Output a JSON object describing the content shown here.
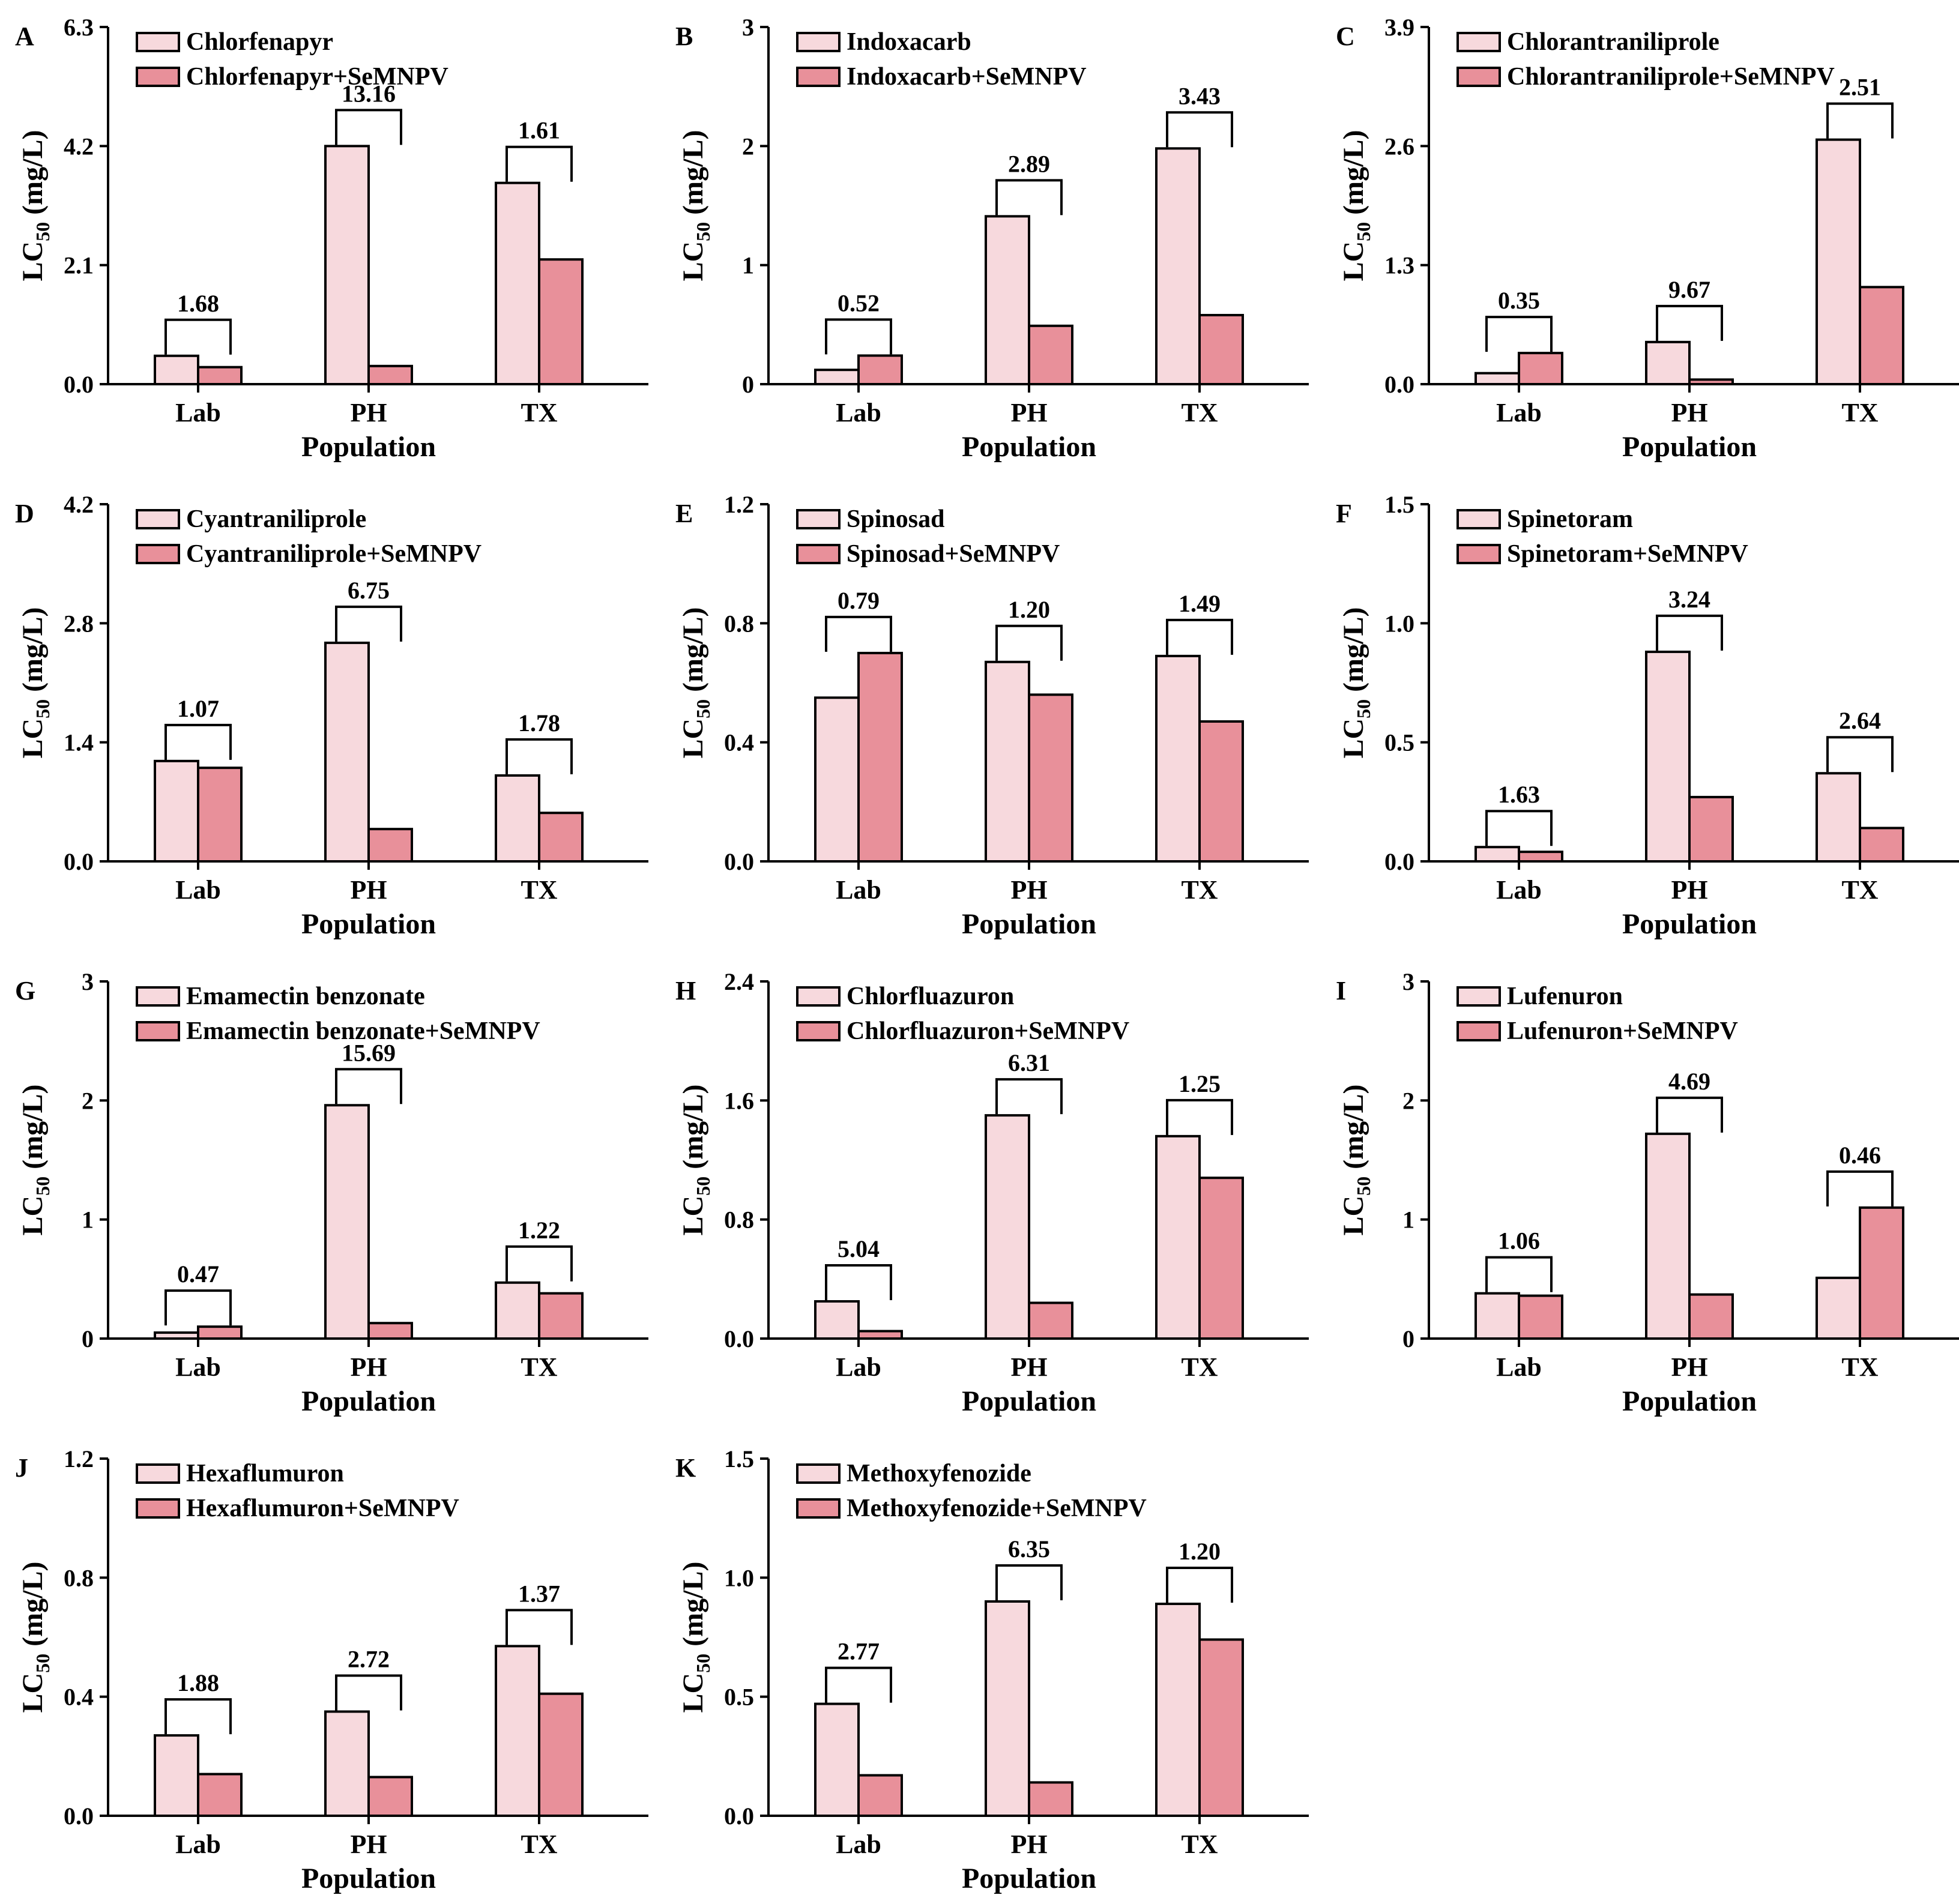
{
  "figure": {
    "colors": {
      "pure": "#f7d9dd",
      "mix": "#e8909a",
      "stroke": "#000000"
    }
  },
  "chart_data": [
    {
      "panel": "A",
      "type": "bar",
      "categories": [
        "Lab",
        "PH",
        "TX"
      ],
      "ylim": [
        0,
        6.3
      ],
      "yticks": [
        "0.0",
        "2.1",
        "4.2",
        "6.3"
      ],
      "xlabel": "Population",
      "ylabel_main": "LC",
      "ylabel_sub": "50",
      "ylabel_unit": " (mg/L)",
      "series": [
        {
          "name": "Chlorfenapyr",
          "values": [
            0.5,
            4.2,
            3.55
          ]
        },
        {
          "name": "Chlorfenapyr+SeMNPV",
          "values": [
            0.3,
            0.32,
            2.2
          ]
        }
      ],
      "ratios": [
        "1.68",
        "13.16",
        "1.61"
      ]
    },
    {
      "panel": "B",
      "type": "bar",
      "categories": [
        "Lab",
        "PH",
        "TX"
      ],
      "ylim": [
        0,
        3
      ],
      "yticks": [
        "0",
        "1",
        "2",
        "3"
      ],
      "xlabel": "Population",
      "ylabel_main": "LC",
      "ylabel_sub": "50",
      "ylabel_unit": " (mg/L)",
      "series": [
        {
          "name": "Indoxacarb",
          "values": [
            0.12,
            1.41,
            1.98
          ]
        },
        {
          "name": "Indoxacarb+SeMNPV",
          "values": [
            0.24,
            0.49,
            0.58
          ]
        }
      ],
      "ratios": [
        "0.52",
        "2.89",
        "3.43"
      ]
    },
    {
      "panel": "C",
      "type": "bar",
      "categories": [
        "Lab",
        "PH",
        "TX"
      ],
      "ylim": [
        0,
        3.9
      ],
      "yticks": [
        "0.0",
        "1.3",
        "2.6",
        "3.9"
      ],
      "xlabel": "Population",
      "ylabel_main": "LC",
      "ylabel_sub": "50",
      "ylabel_unit": " (mg/L)",
      "series": [
        {
          "name": "Chlorantraniliprole",
          "values": [
            0.12,
            0.46,
            2.67
          ]
        },
        {
          "name": "Chlorantraniliprole+SeMNPV",
          "values": [
            0.34,
            0.05,
            1.06
          ]
        }
      ],
      "ratios": [
        "0.35",
        "9.67",
        "2.51"
      ]
    },
    {
      "panel": "D",
      "type": "bar",
      "categories": [
        "Lab",
        "PH",
        "TX"
      ],
      "ylim": [
        0,
        4.2
      ],
      "yticks": [
        "0.0",
        "1.4",
        "2.8",
        "4.2"
      ],
      "xlabel": "Population",
      "ylabel_main": "LC",
      "ylabel_sub": "50",
      "ylabel_unit": " (mg/L)",
      "series": [
        {
          "name": "Cyantraniliprole",
          "values": [
            1.18,
            2.57,
            1.01
          ]
        },
        {
          "name": "Cyantraniliprole+SeMNPV",
          "values": [
            1.1,
            0.38,
            0.57
          ]
        }
      ],
      "ratios": [
        "1.07",
        "6.75",
        "1.78"
      ]
    },
    {
      "panel": "E",
      "type": "bar",
      "categories": [
        "Lab",
        "PH",
        "TX"
      ],
      "ylim": [
        0,
        1.2
      ],
      "yticks": [
        "0.0",
        "0.4",
        "0.8",
        "1.2"
      ],
      "xlabel": "Population",
      "ylabel_main": "LC",
      "ylabel_sub": "50",
      "ylabel_unit": " (mg/L)",
      "series": [
        {
          "name": "Spinosad",
          "values": [
            0.55,
            0.67,
            0.69
          ]
        },
        {
          "name": "Spinosad+SeMNPV",
          "values": [
            0.7,
            0.56,
            0.47
          ]
        }
      ],
      "ratios": [
        "0.79",
        "1.20",
        "1.49"
      ]
    },
    {
      "panel": "F",
      "type": "bar",
      "categories": [
        "Lab",
        "PH",
        "TX"
      ],
      "ylim": [
        0,
        1.5
      ],
      "yticks": [
        "0.0",
        "0.5",
        "1.0",
        "1.5"
      ],
      "xlabel": "Population",
      "ylabel_main": "LC",
      "ylabel_sub": "50",
      "ylabel_unit": " (mg/L)",
      "series": [
        {
          "name": "Spinetoram",
          "values": [
            0.06,
            0.88,
            0.37
          ]
        },
        {
          "name": "Spinetoram+SeMNPV",
          "values": [
            0.04,
            0.27,
            0.14
          ]
        }
      ],
      "ratios": [
        "1.63",
        "3.24",
        "2.64"
      ]
    },
    {
      "panel": "G",
      "type": "bar",
      "categories": [
        "Lab",
        "PH",
        "TX"
      ],
      "ylim": [
        0,
        3
      ],
      "yticks": [
        "0",
        "1",
        "2",
        "3"
      ],
      "xlabel": "Population",
      "ylabel_main": "LC",
      "ylabel_sub": "50",
      "ylabel_unit": " (mg/L)",
      "series": [
        {
          "name": "Emamectin benzonate",
          "values": [
            0.05,
            1.96,
            0.47
          ]
        },
        {
          "name": "Emamectin benzonate+SeMNPV",
          "values": [
            0.1,
            0.13,
            0.38
          ]
        }
      ],
      "ratios": [
        "0.47",
        "15.69",
        "1.22"
      ]
    },
    {
      "panel": "H",
      "type": "bar",
      "categories": [
        "Lab",
        "PH",
        "TX"
      ],
      "ylim": [
        0,
        2.4
      ],
      "yticks": [
        "0.0",
        "0.8",
        "1.6",
        "2.4"
      ],
      "xlabel": "Population",
      "ylabel_main": "LC",
      "ylabel_sub": "50",
      "ylabel_unit": " (mg/L)",
      "series": [
        {
          "name": "Chlorfluazuron",
          "values": [
            0.25,
            1.5,
            1.36
          ]
        },
        {
          "name": "Chlorfluazuron+SeMNPV",
          "values": [
            0.05,
            0.24,
            1.08
          ]
        }
      ],
      "ratios": [
        "5.04",
        "6.31",
        "1.25"
      ]
    },
    {
      "panel": "I",
      "type": "bar",
      "categories": [
        "Lab",
        "PH",
        "TX"
      ],
      "ylim": [
        0,
        3
      ],
      "yticks": [
        "0",
        "1",
        "2",
        "3"
      ],
      "xlabel": "Population",
      "ylabel_main": "LC",
      "ylabel_sub": "50",
      "ylabel_unit": " (mg/L)",
      "series": [
        {
          "name": "Lufenuron",
          "values": [
            0.38,
            1.72,
            0.51
          ]
        },
        {
          "name": "Lufenuron+SeMNPV",
          "values": [
            0.36,
            0.37,
            1.1
          ]
        }
      ],
      "ratios": [
        "1.06",
        "4.69",
        "0.46"
      ]
    },
    {
      "panel": "J",
      "type": "bar",
      "categories": [
        "Lab",
        "PH",
        "TX"
      ],
      "ylim": [
        0,
        1.2
      ],
      "yticks": [
        "0.0",
        "0.4",
        "0.8",
        "1.2"
      ],
      "xlabel": "Population",
      "ylabel_main": "LC",
      "ylabel_sub": "50",
      "ylabel_unit": " (mg/L)",
      "series": [
        {
          "name": "Hexaflumuron",
          "values": [
            0.27,
            0.35,
            0.57
          ]
        },
        {
          "name": "Hexaflumuron+SeMNPV",
          "values": [
            0.14,
            0.13,
            0.41
          ]
        }
      ],
      "ratios": [
        "1.88",
        "2.72",
        "1.37"
      ]
    },
    {
      "panel": "K",
      "type": "bar",
      "categories": [
        "Lab",
        "PH",
        "TX"
      ],
      "ylim": [
        0,
        1.5
      ],
      "yticks": [
        "0.0",
        "0.5",
        "1.0",
        "1.5"
      ],
      "xlabel": "Population",
      "ylabel_main": "LC",
      "ylabel_sub": "50",
      "ylabel_unit": " (mg/L)",
      "series": [
        {
          "name": "Methoxyfenozide",
          "values": [
            0.47,
            0.9,
            0.89
          ]
        },
        {
          "name": "Methoxyfenozide+SeMNPV",
          "values": [
            0.17,
            0.14,
            0.74
          ]
        }
      ],
      "ratios": [
        "2.77",
        "6.35",
        "1.20"
      ]
    }
  ]
}
